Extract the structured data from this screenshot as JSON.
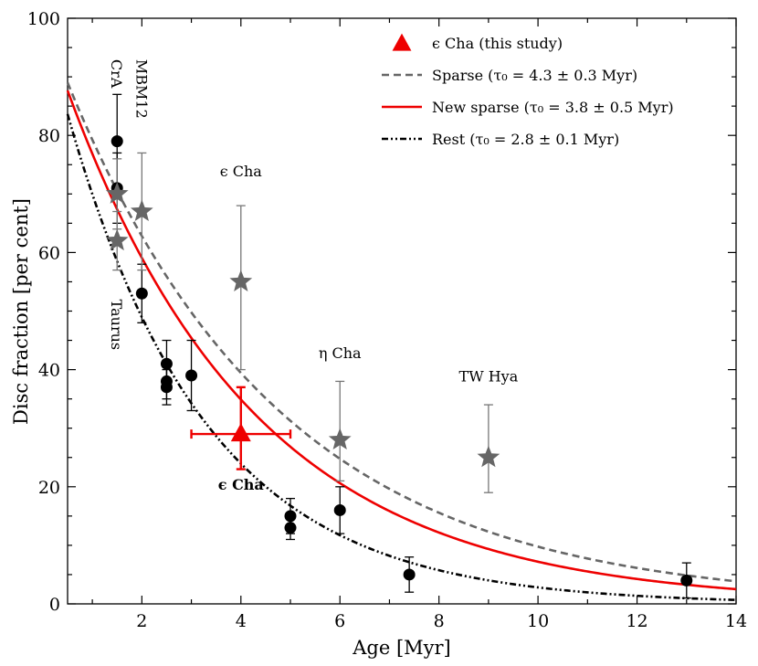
{
  "chart_data": {
    "type": "scatter",
    "xlabel": "Age [Myr]",
    "ylabel": "Disc fraction [per cent]",
    "xlim": [
      0.5,
      14
    ],
    "ylim": [
      0,
      100
    ],
    "xticks": [
      "2",
      "4",
      "6",
      "8",
      "10",
      "12",
      "14"
    ],
    "yticks": [
      "0",
      "20",
      "40",
      "60",
      "80",
      "100"
    ],
    "grid": false,
    "legend_position": "top-right",
    "legend": [
      {
        "label": "ϵ Cha (this study)",
        "style": "marker-triangle",
        "color": "#ee0000"
      },
      {
        "label": "Sparse (τ₀ = 4.3 ± 0.3 Myr)",
        "style": "dashed",
        "color": "#666666"
      },
      {
        "label": "New sparse (τ₀ = 3.8 ± 0.5 Myr)",
        "style": "solid",
        "color": "#ee0000"
      },
      {
        "label": "Rest (τ₀ = 2.8 ± 0.1 Myr)",
        "style": "dashdotdot",
        "color": "#000000"
      }
    ],
    "curves": [
      {
        "name": "Sparse",
        "model": "exponential",
        "amplitude": 100,
        "tau": 4.3,
        "color": "#666666",
        "dash": "dashed"
      },
      {
        "name": "New sparse",
        "model": "exponential",
        "amplitude": 100,
        "tau": 3.8,
        "color": "#ee0000",
        "dash": "solid"
      },
      {
        "name": "Rest",
        "model": "exponential",
        "amplitude": 100,
        "tau": 2.8,
        "color": "#000000",
        "dash": "dashdotdot"
      }
    ],
    "series": [
      {
        "name": "Rest",
        "marker": "circle",
        "color": "#000000",
        "points": [
          {
            "x": 1.5,
            "y": 79,
            "err_low": 8,
            "err_high": 8
          },
          {
            "x": 1.5,
            "y": 71,
            "err_low": 6,
            "err_high": 6
          },
          {
            "x": 2,
            "y": 53,
            "err_low": 5,
            "err_high": 5
          },
          {
            "x": 2.5,
            "y": 41,
            "err_low": 4,
            "err_high": 4
          },
          {
            "x": 2.5,
            "y": 38,
            "err_low": 3,
            "err_high": 3
          },
          {
            "x": 2.5,
            "y": 37,
            "err_low": 3,
            "err_high": 3
          },
          {
            "x": 3,
            "y": 39,
            "err_low": 6,
            "err_high": 6
          },
          {
            "x": 5,
            "y": 15,
            "err_low": 3,
            "err_high": 3
          },
          {
            "x": 5,
            "y": 13,
            "err_low": 2,
            "err_high": 2
          },
          {
            "x": 6,
            "y": 16,
            "err_low": 4,
            "err_high": 4
          },
          {
            "x": 7.4,
            "y": 5,
            "err_low": 3,
            "err_high": 3
          },
          {
            "x": 13,
            "y": 4,
            "err_low": 3,
            "err_high": 3
          }
        ]
      },
      {
        "name": "Sparse",
        "marker": "star",
        "color": "#666666",
        "points": [
          {
            "x": 1.5,
            "y": 70,
            "err_low": 6,
            "err_high": 6
          },
          {
            "x": 1.5,
            "y": 62,
            "err_low": 5,
            "err_high": 5
          },
          {
            "x": 2,
            "y": 67,
            "err_low": 10,
            "err_high": 10
          },
          {
            "x": 4,
            "y": 55,
            "err_low": 15,
            "err_high": 13
          },
          {
            "x": 6,
            "y": 28,
            "err_low": 7,
            "err_high": 10
          },
          {
            "x": 9,
            "y": 25,
            "err_low": 6,
            "err_high": 9
          }
        ]
      },
      {
        "name": "ϵ Cha (this study)",
        "marker": "triangle",
        "color": "#ee0000",
        "points": [
          {
            "x": 4,
            "y": 29,
            "err_low": 6,
            "err_high": 8,
            "xerr_low": 1,
            "xerr_high": 1
          }
        ]
      }
    ],
    "annotations": [
      {
        "text": "CrA",
        "x": 1.5,
        "y": 93,
        "rotation": -90,
        "color": "#000000"
      },
      {
        "text": "MBM12",
        "x": 2,
        "y": 93,
        "rotation": -90,
        "color": "#000000"
      },
      {
        "text": "Taurus",
        "x": 1.5,
        "y": 52,
        "rotation": -90,
        "color": "#000000"
      },
      {
        "text": "ϵ Cha",
        "x": 4,
        "y": 73,
        "rotation": 0,
        "color": "#000000"
      },
      {
        "text": "η Cha",
        "x": 6,
        "y": 42,
        "rotation": 0,
        "color": "#000000"
      },
      {
        "text": "TW Hya",
        "x": 9,
        "y": 38,
        "rotation": 0,
        "color": "#000000"
      },
      {
        "text": "ϵ Cha",
        "x": 4,
        "y": 19.5,
        "rotation": 0,
        "color": "#ee0000",
        "bold": true
      }
    ]
  }
}
